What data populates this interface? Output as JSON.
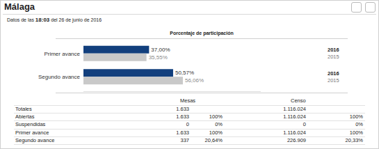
{
  "header": {
    "title": "Málaga",
    "date_line": [
      "Datos de las",
      "18:03",
      "del 26 de junio de 2016"
    ]
  },
  "chart_data": {
    "type": "bar",
    "title": "Porcentaje de participación",
    "orientation": "horizontal",
    "categories": [
      "Primer avance",
      "Segundo avance"
    ],
    "series": [
      {
        "name": "2016",
        "color": "#123f7d",
        "values": [
          37.0,
          50.57
        ],
        "value_labels": [
          "37,00%",
          "50,57%"
        ]
      },
      {
        "name": "2015",
        "color": "#c9c9c9",
        "values": [
          35.55,
          56.06
        ],
        "value_labels": [
          "35,55%",
          "56,06%"
        ]
      }
    ],
    "xlim": [
      0,
      100
    ],
    "data_labels": true,
    "tick_labels": "y",
    "grid": false,
    "stacked": false
  },
  "table": {
    "column_groups": [
      "Mesas",
      "Censo"
    ],
    "rows": [
      [
        "Totales",
        "1.633",
        null,
        "1.116.024",
        null
      ],
      [
        "Abiertas",
        "1.633",
        "100%",
        "1.116.024",
        "100%"
      ],
      [
        "Suspendidas",
        "0",
        "0%",
        "0",
        "0%"
      ],
      [
        "Primer avance",
        "1.633",
        "100%",
        "1.116.024",
        "100%"
      ],
      [
        "Segundo avance",
        "337",
        "20,64%",
        "226.909",
        "20,33%"
      ]
    ]
  }
}
